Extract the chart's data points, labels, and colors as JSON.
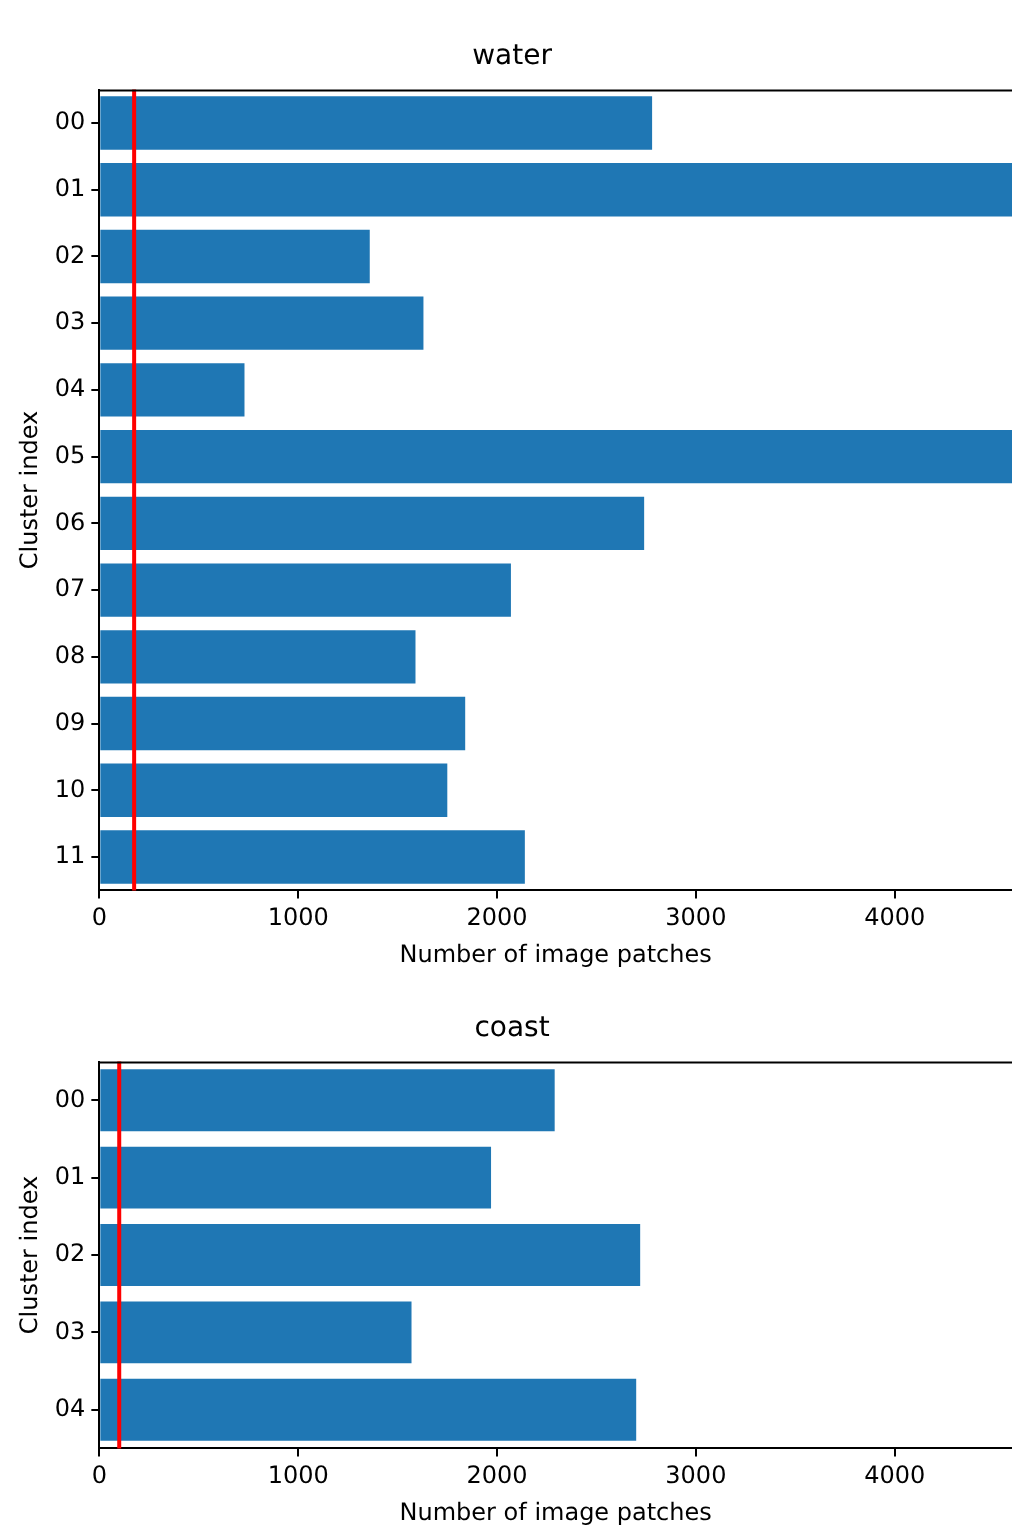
{
  "chart_data": [
    {
      "type": "bar",
      "orientation": "horizontal",
      "title": "water",
      "xlabel": "Number of image patches",
      "ylabel": "Cluster index",
      "categories": [
        "00",
        "01",
        "02",
        "03",
        "04",
        "05",
        "06",
        "07",
        "08",
        "09",
        "10",
        "11"
      ],
      "values": [
        2780,
        4590,
        1360,
        1630,
        730,
        4590,
        2740,
        2070,
        1590,
        1840,
        1750,
        2140
      ],
      "color": "#1f77b4",
      "xlim": [
        0,
        4590
      ],
      "xticks": [
        0,
        1000,
        2000,
        3000,
        4000
      ],
      "grid": false,
      "legend": false,
      "ref_lines": [
        {
          "axis": "x",
          "value": 175,
          "color": "#ff0000"
        }
      ]
    },
    {
      "type": "bar",
      "orientation": "horizontal",
      "title": "coast",
      "xlabel": "Number of image patches",
      "ylabel": "Cluster index",
      "categories": [
        "00",
        "01",
        "02",
        "03",
        "04"
      ],
      "values": [
        2290,
        1970,
        2720,
        1570,
        2700
      ],
      "color": "#1f77b4",
      "xlim": [
        0,
        4590
      ],
      "xticks": [
        0,
        1000,
        2000,
        3000,
        4000
      ],
      "grid": false,
      "legend": false,
      "ref_lines": [
        {
          "axis": "x",
          "value": 100,
          "color": "#ff0000"
        }
      ]
    }
  ]
}
